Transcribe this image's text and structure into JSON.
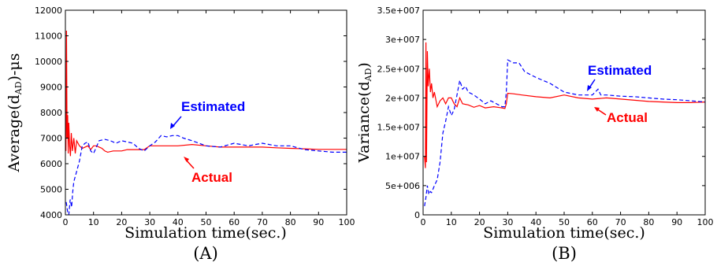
{
  "chart_data": [
    {
      "type": "line",
      "panel_label": "(A)",
      "xlabel": "Simulation time(sec.)",
      "ylabel": "Average(d",
      "ylabel_sub": "AD",
      "ylabel_tail": ")-μs",
      "xlim": [
        0,
        100
      ],
      "ylim": [
        4000,
        12000
      ],
      "xticks": [
        "0",
        "10",
        "20",
        "30",
        "40",
        "50",
        "60",
        "70",
        "80",
        "90",
        "100"
      ],
      "yticks": [
        "4000",
        "5000",
        "6000",
        "7000",
        "8000",
        "9000",
        "10000",
        "11000",
        "12000"
      ],
      "grid": false,
      "colors": {
        "estimated": "#0000ff",
        "actual": "#ff0000"
      },
      "annotations": {
        "estimated": "Estimated",
        "actual": "Actual"
      },
      "series": [
        {
          "key": "actual",
          "style": "solid",
          "x": [
            0.2,
            0.4,
            0.6,
            0.8,
            1.0,
            1.2,
            1.5,
            1.8,
            2.1,
            2.5,
            3,
            3.5,
            4,
            5,
            6,
            7,
            8,
            9,
            10,
            11,
            12,
            13,
            14,
            15,
            17,
            20,
            22,
            25,
            28,
            30,
            33,
            35,
            40,
            45,
            50,
            55,
            60,
            65,
            70,
            75,
            80,
            85,
            90,
            95,
            100
          ],
          "y": [
            6500,
            11200,
            7000,
            7900,
            6400,
            7600,
            6700,
            6300,
            7200,
            6500,
            7000,
            6400,
            6900,
            6700,
            6600,
            6650,
            6700,
            6550,
            6700,
            6700,
            6650,
            6600,
            6500,
            6450,
            6500,
            6500,
            6550,
            6550,
            6550,
            6700,
            6700,
            6700,
            6700,
            6750,
            6700,
            6650,
            6650,
            6650,
            6650,
            6620,
            6600,
            6580,
            6560,
            6560,
            6560
          ]
        },
        {
          "key": "estimated",
          "style": "dashed",
          "x": [
            0.3,
            0.8,
            1.2,
            1.7,
            2.2,
            2.6,
            3,
            4,
            5,
            6,
            7,
            8,
            9,
            10,
            11,
            12,
            14,
            16,
            18,
            20,
            22,
            24,
            26,
            28,
            30,
            32,
            34,
            36,
            38,
            40,
            42,
            45,
            50,
            55,
            60,
            65,
            70,
            75,
            80,
            85,
            90,
            95,
            100
          ],
          "y": [
            4500,
            4100,
            4000,
            4600,
            4300,
            4900,
            5300,
            5700,
            6100,
            6700,
            6800,
            6850,
            6500,
            6400,
            6650,
            6900,
            6950,
            6900,
            6800,
            6900,
            6850,
            6800,
            6600,
            6500,
            6700,
            6850,
            7100,
            7050,
            7100,
            7100,
            7000,
            6900,
            6700,
            6650,
            6800,
            6700,
            6800,
            6700,
            6700,
            6550,
            6500,
            6450,
            6450
          ]
        }
      ]
    },
    {
      "type": "line",
      "panel_label": "(B)",
      "xlabel": "Simulation time(sec.)",
      "ylabel": "Variance(d",
      "ylabel_sub": "AD",
      "ylabel_tail": ")",
      "xlim": [
        0,
        100
      ],
      "ylim": [
        0,
        35000000
      ],
      "xticks": [
        "0",
        "10",
        "20",
        "30",
        "40",
        "50",
        "60",
        "70",
        "80",
        "90",
        "100"
      ],
      "yticks": [
        "0",
        "5e+006",
        "1e+007",
        "1.5e+007",
        "2e+007",
        "2.5e+007",
        "3e+007",
        "3.5e+007"
      ],
      "grid": false,
      "colors": {
        "estimated": "#0000ff",
        "actual": "#ff0000"
      },
      "annotations": {
        "estimated": "Estimated",
        "actual": "Actual"
      },
      "series": [
        {
          "key": "actual",
          "style": "solid",
          "x": [
            0.5,
            0.8,
            1.0,
            1.2,
            1.5,
            1.8,
            2.2,
            2.6,
            3,
            3.5,
            4,
            5,
            6,
            7,
            8,
            9,
            10,
            11,
            12,
            13,
            14,
            16,
            18,
            20,
            22,
            25,
            28,
            29,
            29.5,
            30,
            32,
            35,
            40,
            45,
            50,
            55,
            60,
            65,
            70,
            75,
            80,
            85,
            90,
            95,
            100
          ],
          "y": [
            10000000,
            8000000,
            29500000,
            9000000,
            28000000,
            22000000,
            25000000,
            21000000,
            22500000,
            20000000,
            21000000,
            18500000,
            19500000,
            20000000,
            19000000,
            20000000,
            20000000,
            19000000,
            18500000,
            20000000,
            19000000,
            18800000,
            18400000,
            18700000,
            18300000,
            18500000,
            18300000,
            18200000,
            19000000,
            20800000,
            20700000,
            20500000,
            20200000,
            20000000,
            20500000,
            20000000,
            19800000,
            20000000,
            19800000,
            19600000,
            19400000,
            19300000,
            19200000,
            19200000,
            19300000
          ]
        },
        {
          "key": "estimated",
          "style": "dashed",
          "x": [
            0.5,
            1.0,
            1.5,
            2,
            2.5,
            3,
            4,
            5,
            6,
            7,
            8,
            9,
            10,
            11,
            12,
            13,
            14,
            15,
            16,
            18,
            20,
            22,
            24,
            26,
            28,
            29,
            29.5,
            30,
            32,
            34,
            36,
            40,
            45,
            50,
            55,
            60,
            62,
            63,
            65,
            70,
            75,
            80,
            85,
            90,
            95,
            100
          ],
          "y": [
            1500000,
            3000000,
            5000000,
            3500000,
            4000000,
            3800000,
            5000000,
            6000000,
            9000000,
            14000000,
            16000000,
            18500000,
            17000000,
            18000000,
            20500000,
            23000000,
            21500000,
            22000000,
            21000000,
            20500000,
            19800000,
            19000000,
            19500000,
            19000000,
            18500000,
            18500000,
            21000000,
            26500000,
            26000000,
            26000000,
            24500000,
            23500000,
            22500000,
            21000000,
            20500000,
            20500000,
            21500000,
            20500000,
            20500000,
            20300000,
            20200000,
            20000000,
            19800000,
            19700000,
            19500000,
            19300000
          ]
        }
      ]
    }
  ]
}
